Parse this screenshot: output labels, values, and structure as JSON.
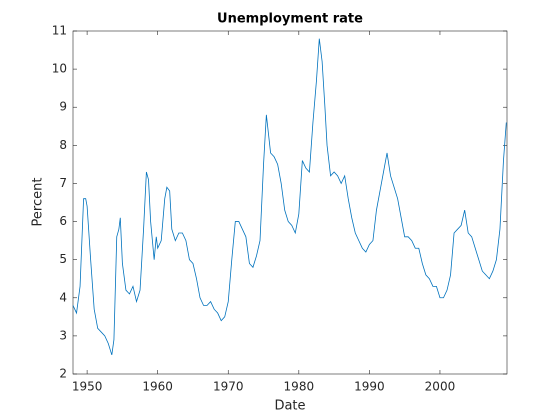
{
  "chart_data": {
    "type": "line",
    "title": "Unemployment rate",
    "x_label": "Date",
    "y_label": "Percent",
    "xlim": [
      1948,
      2009.5
    ],
    "ylim": [
      2,
      11
    ],
    "xticks": [
      1950,
      1960,
      1970,
      1980,
      1990,
      2000
    ],
    "yticks": [
      2,
      3,
      4,
      5,
      6,
      7,
      8,
      9,
      10,
      11
    ],
    "series": [
      {
        "name": "Unemployment rate",
        "color": "#0072bd",
        "x": [
          1948.0,
          1948.5,
          1949.0,
          1949.5,
          1949.8,
          1950.0,
          1950.5,
          1951.0,
          1951.5,
          1952.0,
          1952.5,
          1953.0,
          1953.5,
          1953.8,
          1954.2,
          1954.5,
          1954.7,
          1955.0,
          1955.5,
          1956.0,
          1956.5,
          1957.0,
          1957.5,
          1958.0,
          1958.4,
          1958.7,
          1959.0,
          1959.5,
          1959.8,
          1960.0,
          1960.5,
          1961.0,
          1961.3,
          1961.7,
          1962.0,
          1962.5,
          1963.0,
          1963.5,
          1964.0,
          1964.5,
          1965.0,
          1965.5,
          1966.0,
          1966.5,
          1967.0,
          1967.5,
          1968.0,
          1968.5,
          1969.0,
          1969.5,
          1970.0,
          1970.5,
          1971.0,
          1971.5,
          1972.0,
          1972.5,
          1973.0,
          1973.5,
          1974.0,
          1974.5,
          1975.0,
          1975.4,
          1975.7,
          1976.0,
          1976.5,
          1977.0,
          1977.5,
          1978.0,
          1978.5,
          1979.0,
          1979.5,
          1980.0,
          1980.5,
          1981.0,
          1981.5,
          1982.0,
          1982.5,
          1982.9,
          1983.3,
          1983.7,
          1984.0,
          1984.5,
          1985.0,
          1985.5,
          1986.0,
          1986.5,
          1987.0,
          1987.5,
          1988.0,
          1988.5,
          1989.0,
          1989.5,
          1990.0,
          1990.5,
          1991.0,
          1991.5,
          1992.0,
          1992.5,
          1993.0,
          1993.5,
          1994.0,
          1994.5,
          1995.0,
          1995.5,
          1996.0,
          1996.5,
          1997.0,
          1997.5,
          1998.0,
          1998.5,
          1999.0,
          1999.5,
          2000.0,
          2000.5,
          2001.0,
          2001.5,
          2002.0,
          2002.5,
          2003.0,
          2003.5,
          2004.0,
          2004.5,
          2005.0,
          2005.5,
          2006.0,
          2006.5,
          2007.0,
          2007.5,
          2008.0,
          2008.5,
          2009.0,
          2009.4
        ],
        "values": [
          3.8,
          3.6,
          4.3,
          6.6,
          6.6,
          6.4,
          5.0,
          3.7,
          3.2,
          3.1,
          3.0,
          2.8,
          2.5,
          2.9,
          5.6,
          5.8,
          6.1,
          4.9,
          4.2,
          4.1,
          4.3,
          3.9,
          4.2,
          5.8,
          7.3,
          7.1,
          6.0,
          5.0,
          5.6,
          5.3,
          5.5,
          6.6,
          6.9,
          6.8,
          5.8,
          5.5,
          5.7,
          5.7,
          5.5,
          5.0,
          4.9,
          4.5,
          4.0,
          3.8,
          3.8,
          3.9,
          3.7,
          3.6,
          3.4,
          3.5,
          3.9,
          5.0,
          6.0,
          6.0,
          5.8,
          5.6,
          4.9,
          4.8,
          5.1,
          5.5,
          7.5,
          8.8,
          8.3,
          7.8,
          7.7,
          7.5,
          7.0,
          6.3,
          6.0,
          5.9,
          5.7,
          6.2,
          7.6,
          7.4,
          7.3,
          8.6,
          9.7,
          10.8,
          10.2,
          9.0,
          8.0,
          7.2,
          7.3,
          7.2,
          7.0,
          7.2,
          6.6,
          6.1,
          5.7,
          5.5,
          5.3,
          5.2,
          5.4,
          5.5,
          6.3,
          6.8,
          7.3,
          7.8,
          7.2,
          6.9,
          6.6,
          6.1,
          5.6,
          5.6,
          5.5,
          5.3,
          5.3,
          4.9,
          4.6,
          4.5,
          4.3,
          4.3,
          4.0,
          4.0,
          4.2,
          4.6,
          5.7,
          5.8,
          5.9,
          6.3,
          5.7,
          5.6,
          5.3,
          5.0,
          4.7,
          4.6,
          4.5,
          4.7,
          5.0,
          5.8,
          7.6,
          8.6
        ]
      }
    ]
  }
}
